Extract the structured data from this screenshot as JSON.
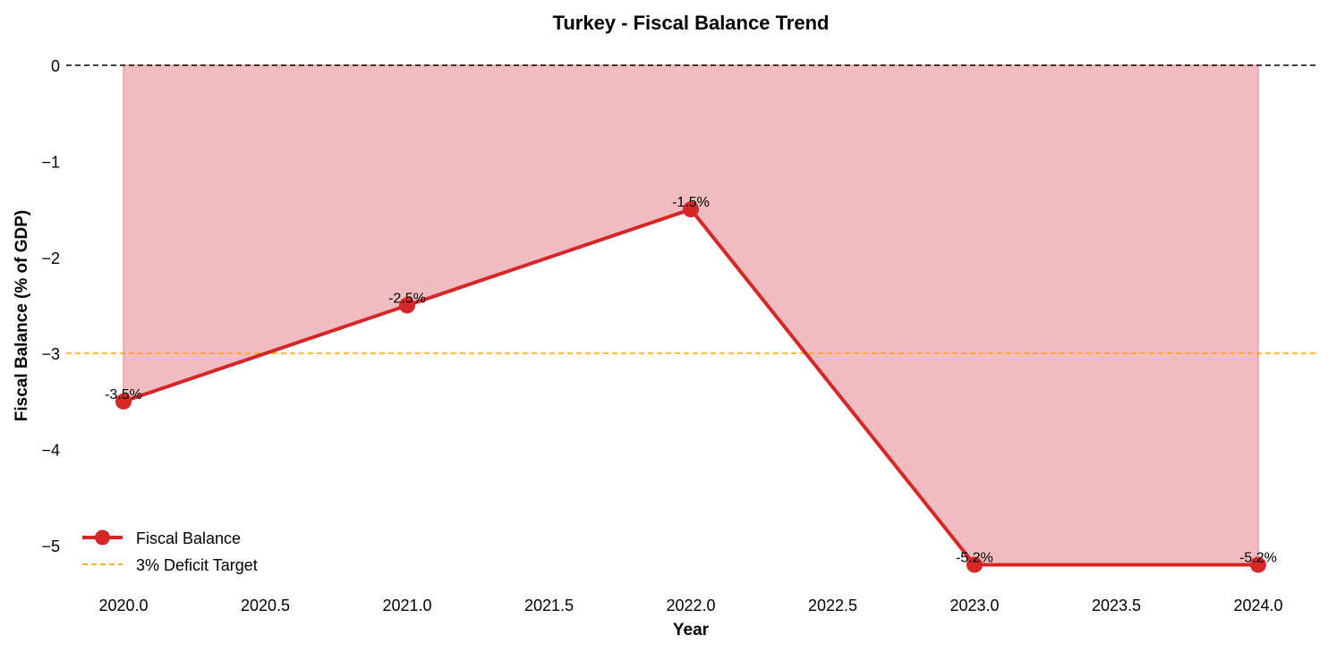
{
  "chart_data": {
    "type": "line",
    "title": "Turkey - Fiscal Balance Trend",
    "xlabel": "Year",
    "ylabel": "Fiscal Balance (% of GDP)",
    "x": [
      2020,
      2021,
      2022,
      2023,
      2024
    ],
    "series": [
      {
        "name": "Fiscal Balance",
        "values": [
          -3.5,
          -2.5,
          -1.5,
          -5.2,
          -5.2
        ],
        "labels": [
          "-3.5%",
          "-2.5%",
          "-1.5%",
          "-5.2%",
          "-5.2%"
        ],
        "color": "#d62728",
        "marker": "circle",
        "fill_to_zero": true,
        "fill_color": "#f0bcbf"
      }
    ],
    "reference_lines": [
      {
        "name": "zero-line",
        "y": 0,
        "color": "#000000",
        "style": "dashed"
      },
      {
        "name": "3% Deficit Target",
        "y": -3,
        "color": "#ffa500",
        "style": "dashed"
      }
    ],
    "xticks": [
      "2020.0",
      "2020.5",
      "2021.0",
      "2021.5",
      "2022.0",
      "2022.5",
      "2023.0",
      "2023.5",
      "2024.0"
    ],
    "yticks": [
      "0",
      "−1",
      "−2",
      "−3",
      "−4",
      "−5"
    ],
    "xlim": [
      2019.8,
      2024.2
    ],
    "ylim": [
      -5.4,
      0.1
    ],
    "grid": false,
    "legend": {
      "position": "lower left",
      "entries": [
        "Fiscal Balance",
        "3% Deficit Target"
      ]
    }
  }
}
